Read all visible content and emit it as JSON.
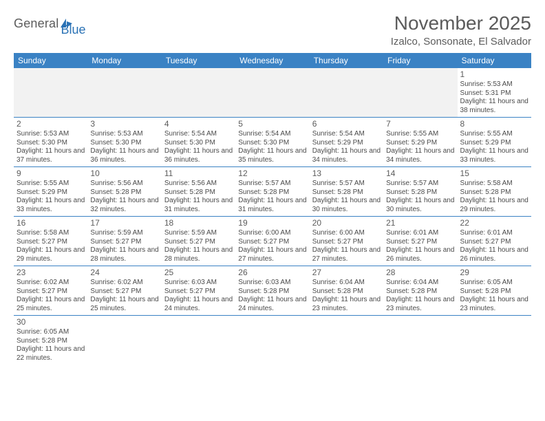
{
  "logo": {
    "text1": "General",
    "text2": "Blue"
  },
  "title": "November 2025",
  "subtitle": "Izalco, Sonsonate, El Salvador",
  "colors": {
    "header_bg": "#3a82c4",
    "header_fg": "#ffffff",
    "blank_bg": "#f2f2f2",
    "text": "#4a4a4a",
    "logo_blue": "#2a72b5",
    "border": "#3a82c4"
  },
  "dayNames": [
    "Sunday",
    "Monday",
    "Tuesday",
    "Wednesday",
    "Thursday",
    "Friday",
    "Saturday"
  ],
  "weeks": [
    [
      {
        "blank": true
      },
      {
        "blank": true
      },
      {
        "blank": true
      },
      {
        "blank": true
      },
      {
        "blank": true
      },
      {
        "blank": true
      },
      {
        "day": 1,
        "sunrise": "5:53 AM",
        "sunset": "5:31 PM",
        "daylight": "11 hours and 38 minutes."
      }
    ],
    [
      {
        "day": 2,
        "sunrise": "5:53 AM",
        "sunset": "5:30 PM",
        "daylight": "11 hours and 37 minutes."
      },
      {
        "day": 3,
        "sunrise": "5:53 AM",
        "sunset": "5:30 PM",
        "daylight": "11 hours and 36 minutes."
      },
      {
        "day": 4,
        "sunrise": "5:54 AM",
        "sunset": "5:30 PM",
        "daylight": "11 hours and 36 minutes."
      },
      {
        "day": 5,
        "sunrise": "5:54 AM",
        "sunset": "5:30 PM",
        "daylight": "11 hours and 35 minutes."
      },
      {
        "day": 6,
        "sunrise": "5:54 AM",
        "sunset": "5:29 PM",
        "daylight": "11 hours and 34 minutes."
      },
      {
        "day": 7,
        "sunrise": "5:55 AM",
        "sunset": "5:29 PM",
        "daylight": "11 hours and 34 minutes."
      },
      {
        "day": 8,
        "sunrise": "5:55 AM",
        "sunset": "5:29 PM",
        "daylight": "11 hours and 33 minutes."
      }
    ],
    [
      {
        "day": 9,
        "sunrise": "5:55 AM",
        "sunset": "5:29 PM",
        "daylight": "11 hours and 33 minutes."
      },
      {
        "day": 10,
        "sunrise": "5:56 AM",
        "sunset": "5:28 PM",
        "daylight": "11 hours and 32 minutes."
      },
      {
        "day": 11,
        "sunrise": "5:56 AM",
        "sunset": "5:28 PM",
        "daylight": "11 hours and 31 minutes."
      },
      {
        "day": 12,
        "sunrise": "5:57 AM",
        "sunset": "5:28 PM",
        "daylight": "11 hours and 31 minutes."
      },
      {
        "day": 13,
        "sunrise": "5:57 AM",
        "sunset": "5:28 PM",
        "daylight": "11 hours and 30 minutes."
      },
      {
        "day": 14,
        "sunrise": "5:57 AM",
        "sunset": "5:28 PM",
        "daylight": "11 hours and 30 minutes."
      },
      {
        "day": 15,
        "sunrise": "5:58 AM",
        "sunset": "5:28 PM",
        "daylight": "11 hours and 29 minutes."
      }
    ],
    [
      {
        "day": 16,
        "sunrise": "5:58 AM",
        "sunset": "5:27 PM",
        "daylight": "11 hours and 29 minutes."
      },
      {
        "day": 17,
        "sunrise": "5:59 AM",
        "sunset": "5:27 PM",
        "daylight": "11 hours and 28 minutes."
      },
      {
        "day": 18,
        "sunrise": "5:59 AM",
        "sunset": "5:27 PM",
        "daylight": "11 hours and 28 minutes."
      },
      {
        "day": 19,
        "sunrise": "6:00 AM",
        "sunset": "5:27 PM",
        "daylight": "11 hours and 27 minutes."
      },
      {
        "day": 20,
        "sunrise": "6:00 AM",
        "sunset": "5:27 PM",
        "daylight": "11 hours and 27 minutes."
      },
      {
        "day": 21,
        "sunrise": "6:01 AM",
        "sunset": "5:27 PM",
        "daylight": "11 hours and 26 minutes."
      },
      {
        "day": 22,
        "sunrise": "6:01 AM",
        "sunset": "5:27 PM",
        "daylight": "11 hours and 26 minutes."
      }
    ],
    [
      {
        "day": 23,
        "sunrise": "6:02 AM",
        "sunset": "5:27 PM",
        "daylight": "11 hours and 25 minutes."
      },
      {
        "day": 24,
        "sunrise": "6:02 AM",
        "sunset": "5:27 PM",
        "daylight": "11 hours and 25 minutes."
      },
      {
        "day": 25,
        "sunrise": "6:03 AM",
        "sunset": "5:27 PM",
        "daylight": "11 hours and 24 minutes."
      },
      {
        "day": 26,
        "sunrise": "6:03 AM",
        "sunset": "5:28 PM",
        "daylight": "11 hours and 24 minutes."
      },
      {
        "day": 27,
        "sunrise": "6:04 AM",
        "sunset": "5:28 PM",
        "daylight": "11 hours and 23 minutes."
      },
      {
        "day": 28,
        "sunrise": "6:04 AM",
        "sunset": "5:28 PM",
        "daylight": "11 hours and 23 minutes."
      },
      {
        "day": 29,
        "sunrise": "6:05 AM",
        "sunset": "5:28 PM",
        "daylight": "11 hours and 23 minutes."
      }
    ],
    [
      {
        "day": 30,
        "sunrise": "6:05 AM",
        "sunset": "5:28 PM",
        "daylight": "11 hours and 22 minutes."
      },
      {
        "blank": true
      },
      {
        "blank": true
      },
      {
        "blank": true
      },
      {
        "blank": true
      },
      {
        "blank": true
      },
      {
        "blank": true
      }
    ]
  ],
  "labels": {
    "sunrise": "Sunrise:",
    "sunset": "Sunset:",
    "daylight": "Daylight:"
  }
}
